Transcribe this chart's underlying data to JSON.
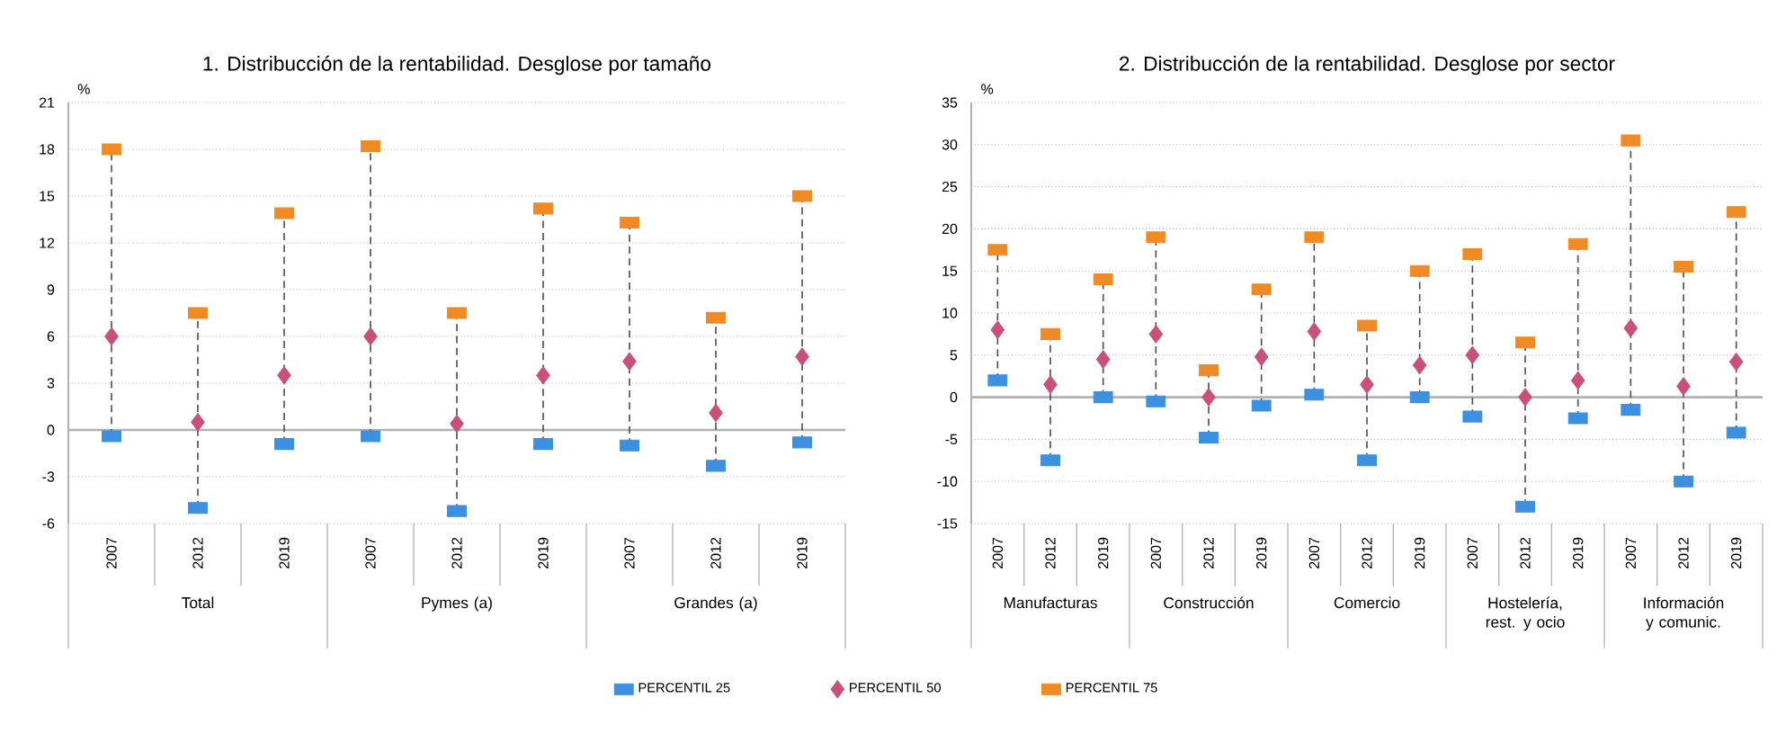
{
  "chart_data": [
    {
      "type": "scatter",
      "title": "1. Distribucción de la rentabilidad. Desglose por tamaño",
      "ylabel": "%",
      "categories": [
        "2007",
        "2012",
        "2019",
        "2007",
        "2012",
        "2019",
        "2007",
        "2012",
        "2019"
      ],
      "annotations": [
        "Total",
        "Pymes (a)",
        "Grandes (a)"
      ],
      "series": [
        {
          "name": "PERCENTIL 25",
          "color": "#3d8fe0",
          "marker": "square",
          "values": [
            -0.4,
            -5.0,
            -0.9,
            -0.4,
            -5.2,
            -0.9,
            -1.0,
            -2.3,
            -0.8
          ]
        },
        {
          "name": "PERCENTIL 50",
          "color": "#c9507a",
          "marker": "diamond",
          "values": [
            6.0,
            0.5,
            3.5,
            6.0,
            0.4,
            3.5,
            4.4,
            1.1,
            4.7
          ]
        },
        {
          "name": "PERCENTIL 75",
          "color": "#f08a24",
          "marker": "square",
          "values": [
            18.0,
            7.5,
            13.9,
            18.2,
            7.5,
            14.2,
            13.3,
            7.2,
            15.0
          ]
        }
      ],
      "ylim": [
        -6,
        21
      ],
      "yticks": [
        -6,
        -3,
        0,
        3,
        6,
        9,
        12,
        15,
        18,
        21
      ],
      "grid": "y",
      "legend": "bottom"
    },
    {
      "type": "scatter",
      "title": "2. Distribucción de la rentabilidad. Desglose por sector",
      "ylabel": "%",
      "categories": [
        "2007",
        "2012",
        "2019",
        "2007",
        "2012",
        "2019",
        "2007",
        "2012",
        "2019",
        "2007",
        "2012",
        "2019",
        "2007",
        "2012",
        "2019"
      ],
      "annotations": [
        "Manufacturas",
        "Construcción",
        "Comercio",
        "Hostelería, rest. y ocio",
        "Información y comunic."
      ],
      "series": [
        {
          "color": "#3d8fe0",
          "marker": "square",
          "values": [
            2,
            -7.5,
            0,
            -0.5,
            -4.8,
            -1,
            0.3,
            -7.5,
            0,
            -2.3,
            -13,
            -2.5,
            -1.5,
            -10,
            -4.2
          ]
        },
        {
          "color": "#c9507a",
          "marker": "diamond",
          "values": [
            8,
            1.5,
            4.5,
            7.5,
            0,
            4.8,
            7.8,
            1.5,
            3.8,
            5,
            0,
            2,
            8.2,
            1.3,
            4.2
          ]
        },
        {
          "color": "#f08a24",
          "marker": "square",
          "values": [
            17.5,
            7.5,
            14,
            19,
            3.2,
            12.8,
            19,
            8.5,
            15,
            17,
            6.5,
            18.2,
            30.5,
            15.5,
            22
          ]
        }
      ],
      "ylim": [
        -15,
        35
      ],
      "yticks": [
        -15,
        -10,
        -5,
        0,
        5,
        10,
        15,
        20,
        25,
        30,
        35
      ],
      "grid": "y"
    }
  ]
}
